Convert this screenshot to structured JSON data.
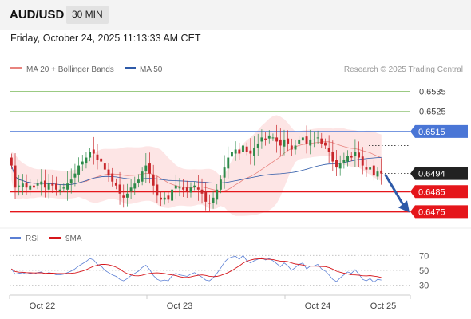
{
  "header": {
    "symbol": "AUD/USD",
    "timeframe": "30 MIN"
  },
  "timestamp": "Friday, October 24, 2025 11:13:33 AM CET",
  "legend": {
    "ma20_label": "MA 20 + Bollinger Bands",
    "ma50_label": "MA 50",
    "credit": "Research © 2025 Trading Central",
    "rsi_label": "RSI",
    "rsi_ma_label": "9MA"
  },
  "colors": {
    "ma20": "#e8837e",
    "ma50": "#2e5aa8",
    "bollinger_fill": "#fde1e1",
    "bull_candle": "#2e8b4a",
    "bear_candle": "#c8262b",
    "resistance": "#4a76d6",
    "resistance_target": "#7ab85a",
    "support": "#e5161b",
    "current_price": "#222222",
    "arrow": "#2e5aa8",
    "rsi_line": "#5b7fd4",
    "rsi_ma_line": "#d6161b"
  },
  "chart_data": {
    "type": "candlestick",
    "symbol": "AUD/USD",
    "interval": "30 MIN",
    "y_axis_range": [
      0.6468,
      0.6542
    ],
    "x_tick_labels": [
      "Oct 22",
      "Oct 23",
      "Oct 24",
      "Oct 25"
    ],
    "price_levels": [
      {
        "label": "0.6535",
        "value": 0.6535,
        "kind": "target"
      },
      {
        "label": "0.6525",
        "value": 0.6525,
        "kind": "target"
      },
      {
        "label": "0.6515",
        "value": 0.6515,
        "kind": "pivot"
      },
      {
        "label": "0.6494",
        "value": 0.6494,
        "kind": "current"
      },
      {
        "label": "0.6485",
        "value": 0.6485,
        "kind": "support"
      },
      {
        "label": "0.6475",
        "value": 0.6475,
        "kind": "support"
      }
    ],
    "forecast": {
      "from": 0.6494,
      "to": 0.6475,
      "direction": "down"
    },
    "close_series": [
      0.6498,
      0.6487,
      0.6488,
      0.6489,
      0.6487,
      0.6488,
      0.6487,
      0.6489,
      0.649,
      0.6487,
      0.6489,
      0.6488,
      0.6486,
      0.6486,
      0.6487,
      0.6489,
      0.6491,
      0.6494,
      0.6498,
      0.65,
      0.6502,
      0.6505,
      0.6504,
      0.6501,
      0.65,
      0.6496,
      0.6493,
      0.649,
      0.6488,
      0.6484,
      0.6482,
      0.6484,
      0.6487,
      0.6489,
      0.6491,
      0.6495,
      0.6498,
      0.6494,
      0.6488,
      0.6483,
      0.6481,
      0.6482,
      0.6481,
      0.6486,
      0.6488,
      0.6487,
      0.6486,
      0.6485,
      0.6487,
      0.6488,
      0.6486,
      0.6484,
      0.648,
      0.6479,
      0.6482,
      0.6486,
      0.6491,
      0.6497,
      0.6502,
      0.6505,
      0.6506,
      0.6504,
      0.6508,
      0.6505,
      0.6504,
      0.6507,
      0.6509,
      0.6512,
      0.6511,
      0.6513,
      0.6512,
      0.651,
      0.6508,
      0.6511,
      0.6509,
      0.6506,
      0.6508,
      0.6511,
      0.6512,
      0.6509,
      0.6511,
      0.6511,
      0.6512,
      0.6509,
      0.6508,
      0.6505,
      0.65,
      0.6497,
      0.6499,
      0.6501,
      0.6503,
      0.6502,
      0.6505,
      0.6502,
      0.6498,
      0.6496,
      0.6497,
      0.6493,
      0.6495,
      0.6494
    ],
    "rsi": {
      "levels": [
        70,
        50,
        30
      ],
      "series": [
        52,
        45,
        46,
        47,
        45,
        46,
        45,
        47,
        48,
        45,
        47,
        46,
        44,
        44,
        45,
        47,
        49,
        52,
        56,
        59,
        62,
        66,
        64,
        58,
        56,
        50,
        47,
        44,
        42,
        38,
        36,
        39,
        43,
        46,
        49,
        54,
        57,
        51,
        43,
        38,
        36,
        37,
        36,
        43,
        46,
        44,
        43,
        42,
        45,
        47,
        44,
        41,
        37,
        36,
        40,
        46,
        53,
        61,
        66,
        68,
        69,
        65,
        70,
        63,
        60,
        63,
        65,
        67,
        64,
        66,
        63,
        59,
        55,
        60,
        56,
        50,
        54,
        58,
        60,
        52,
        56,
        56,
        58,
        52,
        49,
        44,
        38,
        35,
        40,
        44,
        48,
        46,
        51,
        45,
        38,
        36,
        39,
        34,
        38,
        37
      ]
    }
  }
}
